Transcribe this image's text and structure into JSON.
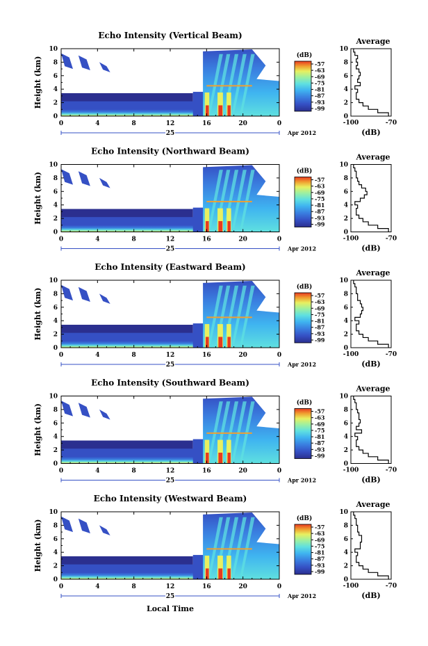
{
  "colors": {
    "palette": [
      "#2b2f8f",
      "#3550c4",
      "#3a7fe0",
      "#3fb4f0",
      "#5fe0e0",
      "#9ef0a0",
      "#e8f060",
      "#f0a030",
      "#e83a20"
    ],
    "background": "#ffffff",
    "text": "#000000"
  },
  "common": {
    "ylabel": "Height (km)",
    "colorbar_label": "(dB)",
    "colorbar_ticks": [
      "-57",
      "-63",
      "-69",
      "-75",
      "-81",
      "-87",
      "-93",
      "-99"
    ],
    "date_label": "Apr 2012",
    "day_label": "25",
    "xlabel": "Local Time",
    "avg_title": "Average",
    "avg_xlabel": "(dB)"
  },
  "chart_data": [
    {
      "type": "heatmap",
      "title": "Echo Intensity (Vertical Beam)",
      "xlabel": "Local Time",
      "ylabel": "Height (km)",
      "x_ticks": [
        "0",
        "4",
        "8",
        "12",
        "16",
        "20",
        "0"
      ],
      "xlim": [
        0,
        24
      ],
      "y_ticks": [
        "0",
        "2",
        "4",
        "6",
        "8",
        "10"
      ],
      "ylim": [
        0,
        10
      ],
      "colorbar": {
        "label": "(dB)",
        "ticks": [
          -57,
          -63,
          -69,
          -75,
          -81,
          -87,
          -93,
          -99
        ]
      },
      "average_profile": {
        "title": "Average",
        "xlabel": "(dB)",
        "x_ticks": [
          "-100",
          "-70"
        ],
        "xlim": [
          -100,
          -70
        ],
        "heights_km": [
          0,
          0.5,
          1,
          1.5,
          2,
          2.5,
          3,
          3.5,
          4,
          4.5,
          5,
          5.5,
          6,
          6.5,
          7,
          7.5,
          8,
          8.5,
          9,
          9.5
        ],
        "values_db": [
          -72,
          -80,
          -87,
          -91,
          -94,
          -96,
          -96,
          -95,
          -97,
          -93,
          -95,
          -94,
          -93,
          -94,
          -96,
          -95,
          -96,
          -95,
          -97,
          -98
        ]
      }
    },
    {
      "type": "heatmap",
      "title": "Echo Intensity (Northward Beam)",
      "xlabel": "Local Time",
      "ylabel": "Height (km)",
      "x_ticks": [
        "0",
        "4",
        "8",
        "12",
        "16",
        "20",
        "0"
      ],
      "xlim": [
        0,
        24
      ],
      "y_ticks": [
        "0",
        "2",
        "4",
        "6",
        "8",
        "10"
      ],
      "ylim": [
        0,
        10
      ],
      "colorbar": {
        "label": "(dB)",
        "ticks": [
          -57,
          -63,
          -69,
          -75,
          -81,
          -87,
          -93,
          -99
        ]
      },
      "average_profile": {
        "title": "Average",
        "xlabel": "(dB)",
        "x_ticks": [
          "-100",
          "-70"
        ],
        "xlim": [
          -100,
          -70
        ],
        "heights_km": [
          0,
          0.5,
          1,
          1.5,
          2,
          2.5,
          3,
          3.5,
          4,
          4.5,
          5,
          5.5,
          6,
          6.5,
          7,
          7.5,
          8,
          8.5,
          9,
          9.5
        ],
        "values_db": [
          -72,
          -80,
          -87,
          -91,
          -94,
          -96,
          -96,
          -95,
          -97,
          -93,
          -90,
          -88,
          -89,
          -92,
          -94,
          -95,
          -96,
          -96,
          -97,
          -98
        ]
      }
    },
    {
      "type": "heatmap",
      "title": "Echo Intensity (Eastward Beam)",
      "xlabel": "Local Time",
      "ylabel": "Height (km)",
      "x_ticks": [
        "0",
        "4",
        "8",
        "12",
        "16",
        "20",
        "0"
      ],
      "xlim": [
        0,
        24
      ],
      "y_ticks": [
        "0",
        "2",
        "4",
        "6",
        "8",
        "10"
      ],
      "ylim": [
        0,
        10
      ],
      "colorbar": {
        "label": "(dB)",
        "ticks": [
          -57,
          -63,
          -69,
          -75,
          -81,
          -87,
          -93,
          -99
        ]
      },
      "average_profile": {
        "title": "Average",
        "xlabel": "(dB)",
        "x_ticks": [
          "-100",
          "-70"
        ],
        "xlim": [
          -100,
          -70
        ],
        "heights_km": [
          0,
          0.5,
          1,
          1.5,
          2,
          2.5,
          3,
          3.5,
          4,
          4.5,
          5,
          5.5,
          6,
          6.5,
          7,
          7.5,
          8,
          8.5,
          9,
          9.5
        ],
        "values_db": [
          -72,
          -80,
          -87,
          -91,
          -94,
          -96,
          -96,
          -94,
          -97,
          -93,
          -92,
          -91,
          -92,
          -93,
          -95,
          -95,
          -96,
          -96,
          -97,
          -98
        ]
      }
    },
    {
      "type": "heatmap",
      "title": "Echo Intensity (Southward Beam)",
      "xlabel": "Local Time",
      "ylabel": "Height (km)",
      "x_ticks": [
        "0",
        "4",
        "8",
        "12",
        "16",
        "20",
        "0"
      ],
      "xlim": [
        0,
        24
      ],
      "y_ticks": [
        "0",
        "2",
        "4",
        "6",
        "8",
        "10"
      ],
      "ylim": [
        0,
        10
      ],
      "colorbar": {
        "label": "(dB)",
        "ticks": [
          -57,
          -63,
          -69,
          -75,
          -81,
          -87,
          -93,
          -99
        ]
      },
      "average_profile": {
        "title": "Average",
        "xlabel": "(dB)",
        "x_ticks": [
          "-100",
          "-70"
        ],
        "xlim": [
          -100,
          -70
        ],
        "heights_km": [
          0,
          0.5,
          1,
          1.5,
          2,
          2.5,
          3,
          3.5,
          4,
          4.5,
          5,
          5.5,
          6,
          6.5,
          7,
          7.5,
          8,
          8.5,
          9,
          9.5
        ],
        "values_db": [
          -72,
          -80,
          -87,
          -91,
          -94,
          -96,
          -96,
          -95,
          -97,
          -92,
          -96,
          -94,
          -93,
          -94,
          -94,
          -95,
          -96,
          -96,
          -97,
          -98
        ]
      }
    },
    {
      "type": "heatmap",
      "title": "Echo Intensity (Westward Beam)",
      "xlabel": "Local Time",
      "ylabel": "Height (km)",
      "x_ticks": [
        "0",
        "4",
        "8",
        "12",
        "16",
        "20",
        "0"
      ],
      "xlim": [
        0,
        24
      ],
      "y_ticks": [
        "0",
        "2",
        "4",
        "6",
        "8",
        "10"
      ],
      "ylim": [
        0,
        10
      ],
      "colorbar": {
        "label": "(dB)",
        "ticks": [
          -57,
          -63,
          -69,
          -75,
          -81,
          -87,
          -93,
          -99
        ]
      },
      "average_profile": {
        "title": "Average",
        "xlabel": "(dB)",
        "x_ticks": [
          "-100",
          "-70"
        ],
        "xlim": [
          -100,
          -70
        ],
        "heights_km": [
          0,
          0.5,
          1,
          1.5,
          2,
          2.5,
          3,
          3.5,
          4,
          4.5,
          5,
          5.5,
          6,
          6.5,
          7,
          7.5,
          8,
          8.5,
          9,
          9.5
        ],
        "values_db": [
          -72,
          -80,
          -87,
          -91,
          -94,
          -96,
          -96,
          -95,
          -97,
          -93,
          -93,
          -92,
          -92,
          -94,
          -95,
          -95,
          -96,
          -96,
          -97,
          -98
        ]
      }
    }
  ]
}
